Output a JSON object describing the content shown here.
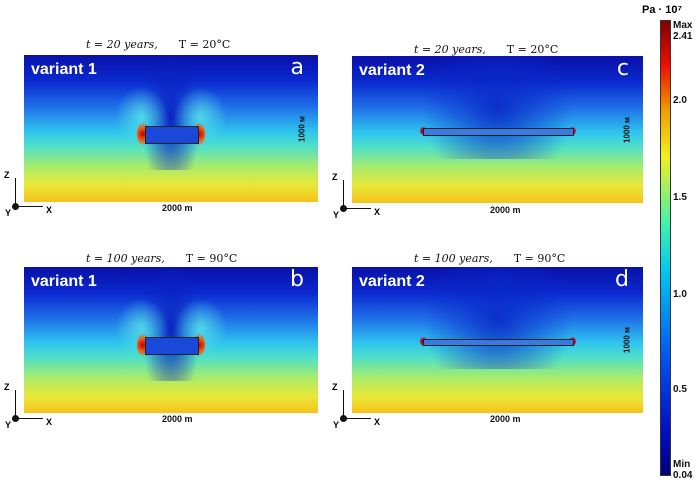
{
  "panels": [
    {
      "id": "a",
      "variant": "variant 1",
      "time": "t = 20 years,",
      "temp": "T = 20°C",
      "height_label": "1000 м",
      "width_label": "2000 m"
    },
    {
      "id": "b",
      "variant": "variant 1",
      "time": "t = 100 years,",
      "temp": "T = 90°C",
      "height_label": "",
      "width_label": "2000 m"
    },
    {
      "id": "c",
      "variant": "variant 2",
      "time": "t = 20 years,",
      "temp": "T = 20°C",
      "height_label": "1000 м",
      "width_label": "2000 m"
    },
    {
      "id": "d",
      "variant": "variant 2",
      "time": "t = 100 years,",
      "temp": "T = 90°C",
      "height_label": "1000 м",
      "width_label": "2000 m"
    }
  ],
  "axes": {
    "z": "Z",
    "y": "Y",
    "x": "X"
  },
  "colorbar": {
    "unit": "Pa · 10⁷",
    "max_label": "Max",
    "max": "2.41",
    "min_label": "Min",
    "min": "0.04",
    "ticks": [
      "2.0",
      "1.5",
      "1.0",
      "0.5"
    ]
  }
}
